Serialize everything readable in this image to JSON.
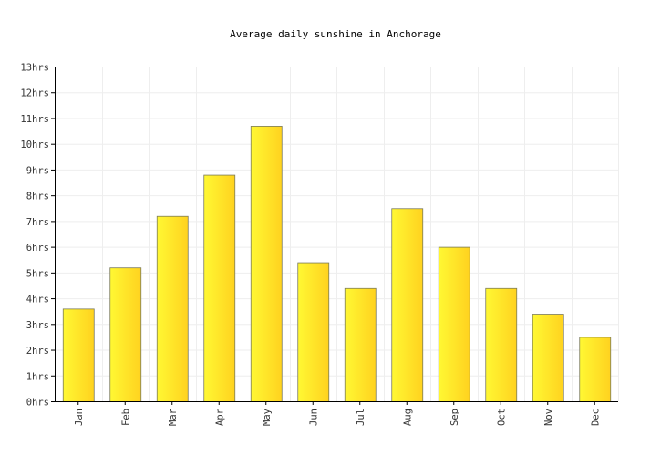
{
  "chart_data": {
    "type": "bar",
    "title": "Average daily sunshine in Anchorage",
    "xlabel": "",
    "ylabel": "",
    "categories": [
      "Jan",
      "Feb",
      "Mar",
      "Apr",
      "May",
      "Jun",
      "Jul",
      "Aug",
      "Sep",
      "Oct",
      "Nov",
      "Dec"
    ],
    "values": [
      3.6,
      5.2,
      7.2,
      8.8,
      10.7,
      5.4,
      4.4,
      7.5,
      6.0,
      4.4,
      3.4,
      2.5
    ],
    "ylim": [
      0,
      13
    ],
    "yticks": [
      "0hrs",
      "1hrs",
      "2hrs",
      "3hrs",
      "4hrs",
      "5hrs",
      "6hrs",
      "7hrs",
      "8hrs",
      "9hrs",
      "10hrs",
      "11hrs",
      "12hrs",
      "13hrs"
    ],
    "grid": true,
    "colors": {
      "bar_light": "#fff833",
      "bar_dark": "#ffd21f",
      "bar_border": "#7a7a5a"
    }
  }
}
